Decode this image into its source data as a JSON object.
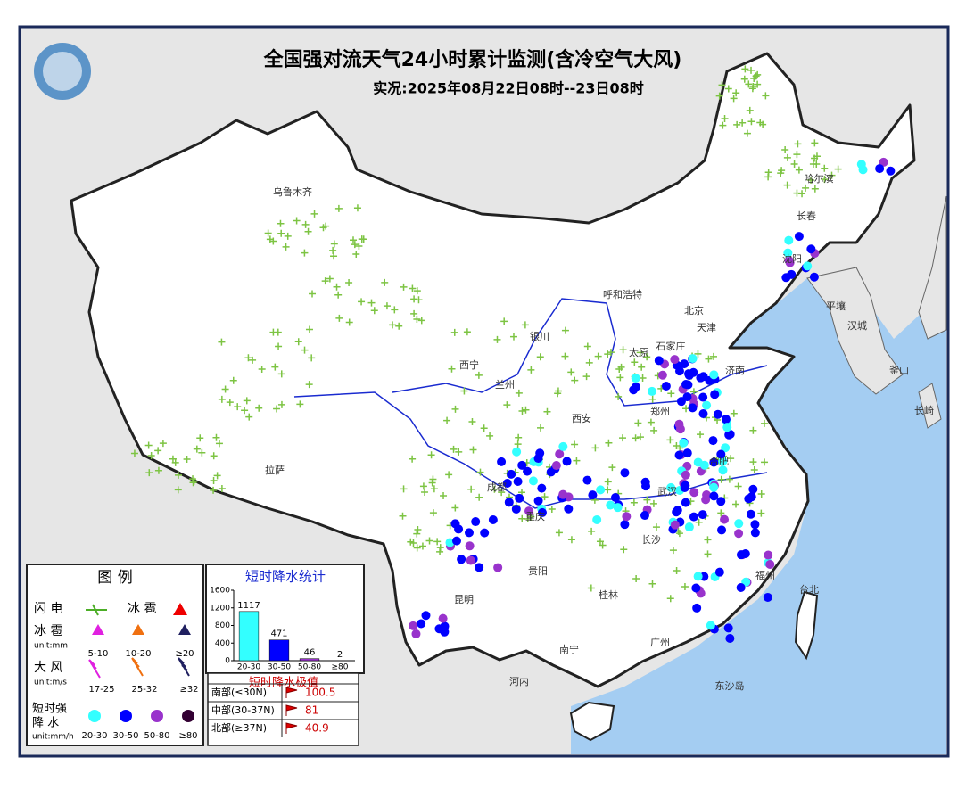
{
  "header": {
    "title": "全国强对流天气24小时累计监测(含冷空气大风)",
    "subtitle": "实况:2025年08月22日08时--23日08时"
  },
  "cities": [
    "乌鲁木齐",
    "哈尔滨",
    "长春",
    "沈阳",
    "平壤",
    "汉城",
    "釜山",
    "长崎",
    "呼和浩特",
    "北京",
    "银川",
    "太原",
    "石家庄",
    "西宁",
    "兰州",
    "郑州",
    "西安",
    "合肥",
    "拉萨",
    "成都",
    "武汉",
    "重庆",
    "长沙",
    "贵阳",
    "福州",
    "昆明",
    "桂林",
    "南宁",
    "广州",
    "河内",
    "东沙岛",
    "天津",
    "济南",
    "台北"
  ],
  "legend": {
    "title": "图 例",
    "lightning": "闪 电",
    "hail": "冰 雹",
    "hail_size": {
      "label": "冰 雹",
      "unit": "unit:mm",
      "classes": [
        "5-10",
        "10-20",
        "≥20"
      ]
    },
    "wind": {
      "label": "大 风",
      "unit": "unit:m/s",
      "classes": [
        "17-25",
        "25-32",
        "≥32"
      ]
    },
    "rain": {
      "label": [
        "短时强",
        "降 水"
      ],
      "unit": "unit:mm/h",
      "classes": [
        "20-30",
        "30-50",
        "50-80",
        "≥80"
      ]
    }
  },
  "chart_data": {
    "type": "bar",
    "title": "短时降水统计",
    "categories": [
      "20-30",
      "30-50",
      "50-80",
      "≥80"
    ],
    "values": [
      1117,
      471,
      46,
      2
    ],
    "colors": [
      "#33ffff",
      "#0000ff",
      "#9933cc",
      "#330033"
    ],
    "ylim": [
      0,
      1600
    ],
    "yticks": [
      0,
      400,
      800,
      1200,
      1600
    ]
  },
  "extremes": {
    "title": "短时降水极值",
    "rows": [
      [
        "南部(≤30N)",
        "100.5"
      ],
      [
        "中部(30-37N)",
        "81"
      ],
      [
        "北部(≥37N)",
        "40.9"
      ]
    ]
  }
}
